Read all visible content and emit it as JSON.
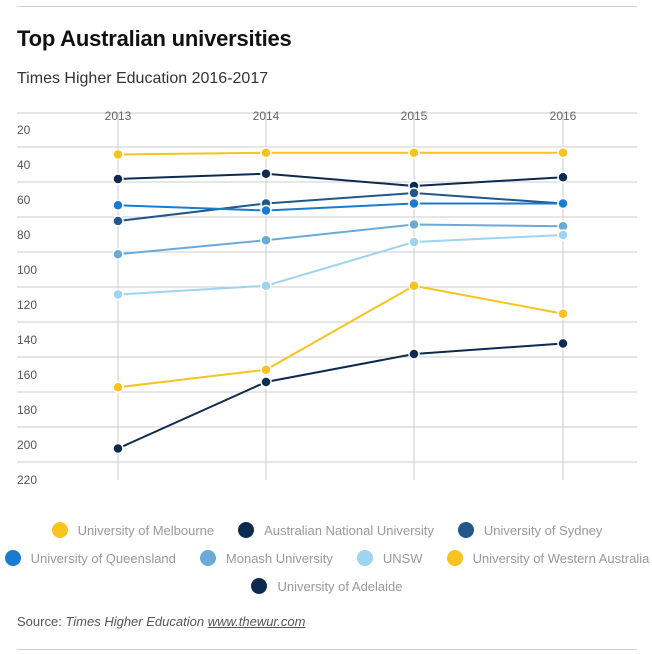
{
  "title": "Top Australian universities",
  "subtitle": "Times Higher Education 2016-2017",
  "source": {
    "prefix": "Source:",
    "publication": "Times Higher Education",
    "link": "www.thewur.com"
  },
  "chart_data": {
    "type": "line",
    "x": [
      "2013",
      "2014",
      "2015",
      "2016"
    ],
    "y_ticks": [
      20,
      40,
      60,
      80,
      100,
      120,
      140,
      160,
      180,
      200,
      220
    ],
    "ylim": [
      220,
      20
    ],
    "y_inverted": true,
    "grid": true,
    "legend_position": "bottom",
    "series": [
      {
        "name": "University of Melbourne",
        "color": "#f7c31e",
        "values": [
          34,
          33,
          33,
          33
        ]
      },
      {
        "name": "Australian National University",
        "color": "#0d2a4f",
        "values": [
          48,
          45,
          52,
          47
        ]
      },
      {
        "name": "University of Sydney",
        "color": "#22578a",
        "values": [
          72,
          62,
          56,
          62
        ]
      },
      {
        "name": "University of Queensland",
        "color": "#1a7bd1",
        "values": [
          63,
          66,
          62,
          62
        ]
      },
      {
        "name": "Monash University",
        "color": "#6aaad8",
        "values": [
          91,
          83,
          74,
          75
        ]
      },
      {
        "name": "UNSW",
        "color": "#9fd3ef",
        "values": [
          114,
          109,
          84,
          80
        ]
      },
      {
        "name": "University of Western Australia",
        "color": "#f7c31e",
        "values": [
          167,
          157,
          109,
          125
        ]
      },
      {
        "name": "University of Adelaide",
        "color": "#0d2a4f",
        "values": [
          202,
          164,
          148,
          142
        ]
      }
    ]
  },
  "colors": {
    "grid": "#cccccc",
    "text": "#222222",
    "legend_text": "#999999"
  }
}
